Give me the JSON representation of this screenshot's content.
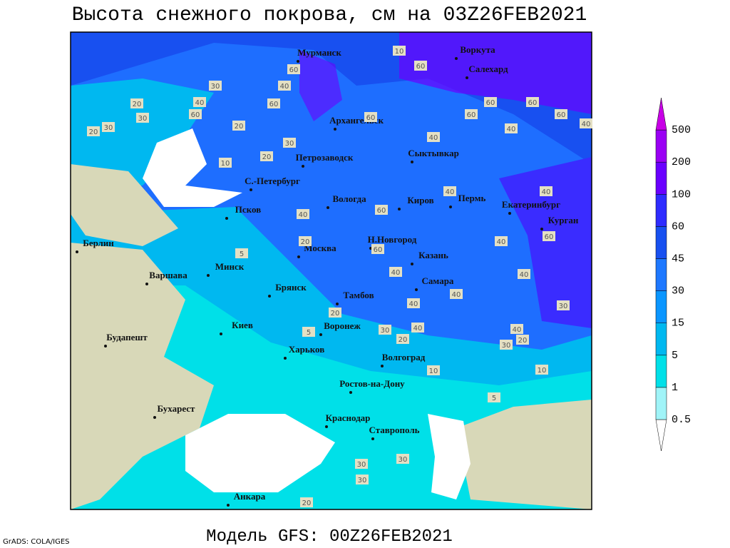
{
  "title": "Высота снежного покрова, см на 03Z26FEB2021",
  "footer": "Модель GFS: 00Z26FEB2021",
  "credit": "GrADS: COLA/IGES",
  "cities": [
    "Мурманск",
    "Воркута",
    "Салехард",
    "Архангельск",
    "Сыктывкар",
    "Петрозаводск",
    "С.-Петербург",
    "Вологда",
    "Киров",
    "Пермь",
    "Екатеринбург",
    "Курган",
    "Псков",
    "Берлин",
    "Москва",
    "Н.Новгород",
    "Казань",
    "Минск",
    "Варшава",
    "Самара",
    "Брянск",
    "Тамбов",
    "Киев",
    "Воронеж",
    "Будапешт",
    "Харьков",
    "Волгоград",
    "Ростов-на-Дону",
    "Бухарест",
    "Краснодар",
    "Ставрополь",
    "Анкара"
  ],
  "contour_labels": [
    10,
    60,
    60,
    30,
    40,
    20,
    40,
    60,
    60,
    60,
    60,
    60,
    60,
    60,
    30,
    20,
    20,
    30,
    40,
    40,
    40,
    30,
    10,
    20,
    40,
    40,
    60,
    40,
    20,
    40,
    60,
    5,
    60,
    40,
    40,
    40,
    40,
    30,
    20,
    40,
    5,
    30,
    40,
    20,
    30,
    20,
    10,
    10,
    5,
    30,
    30,
    30,
    20
  ],
  "legend": {
    "levels": [
      0.5,
      1,
      5,
      15,
      30,
      45,
      60,
      100,
      200,
      500
    ],
    "colors": [
      "#ffffff",
      "#a0f4f8",
      "#00e0e8",
      "#00b8f0",
      "#0a96ff",
      "#1e78ff",
      "#1850f0",
      "#2e2cff",
      "#6a00ff",
      "#9a00f4",
      "#c800e6"
    ]
  }
}
